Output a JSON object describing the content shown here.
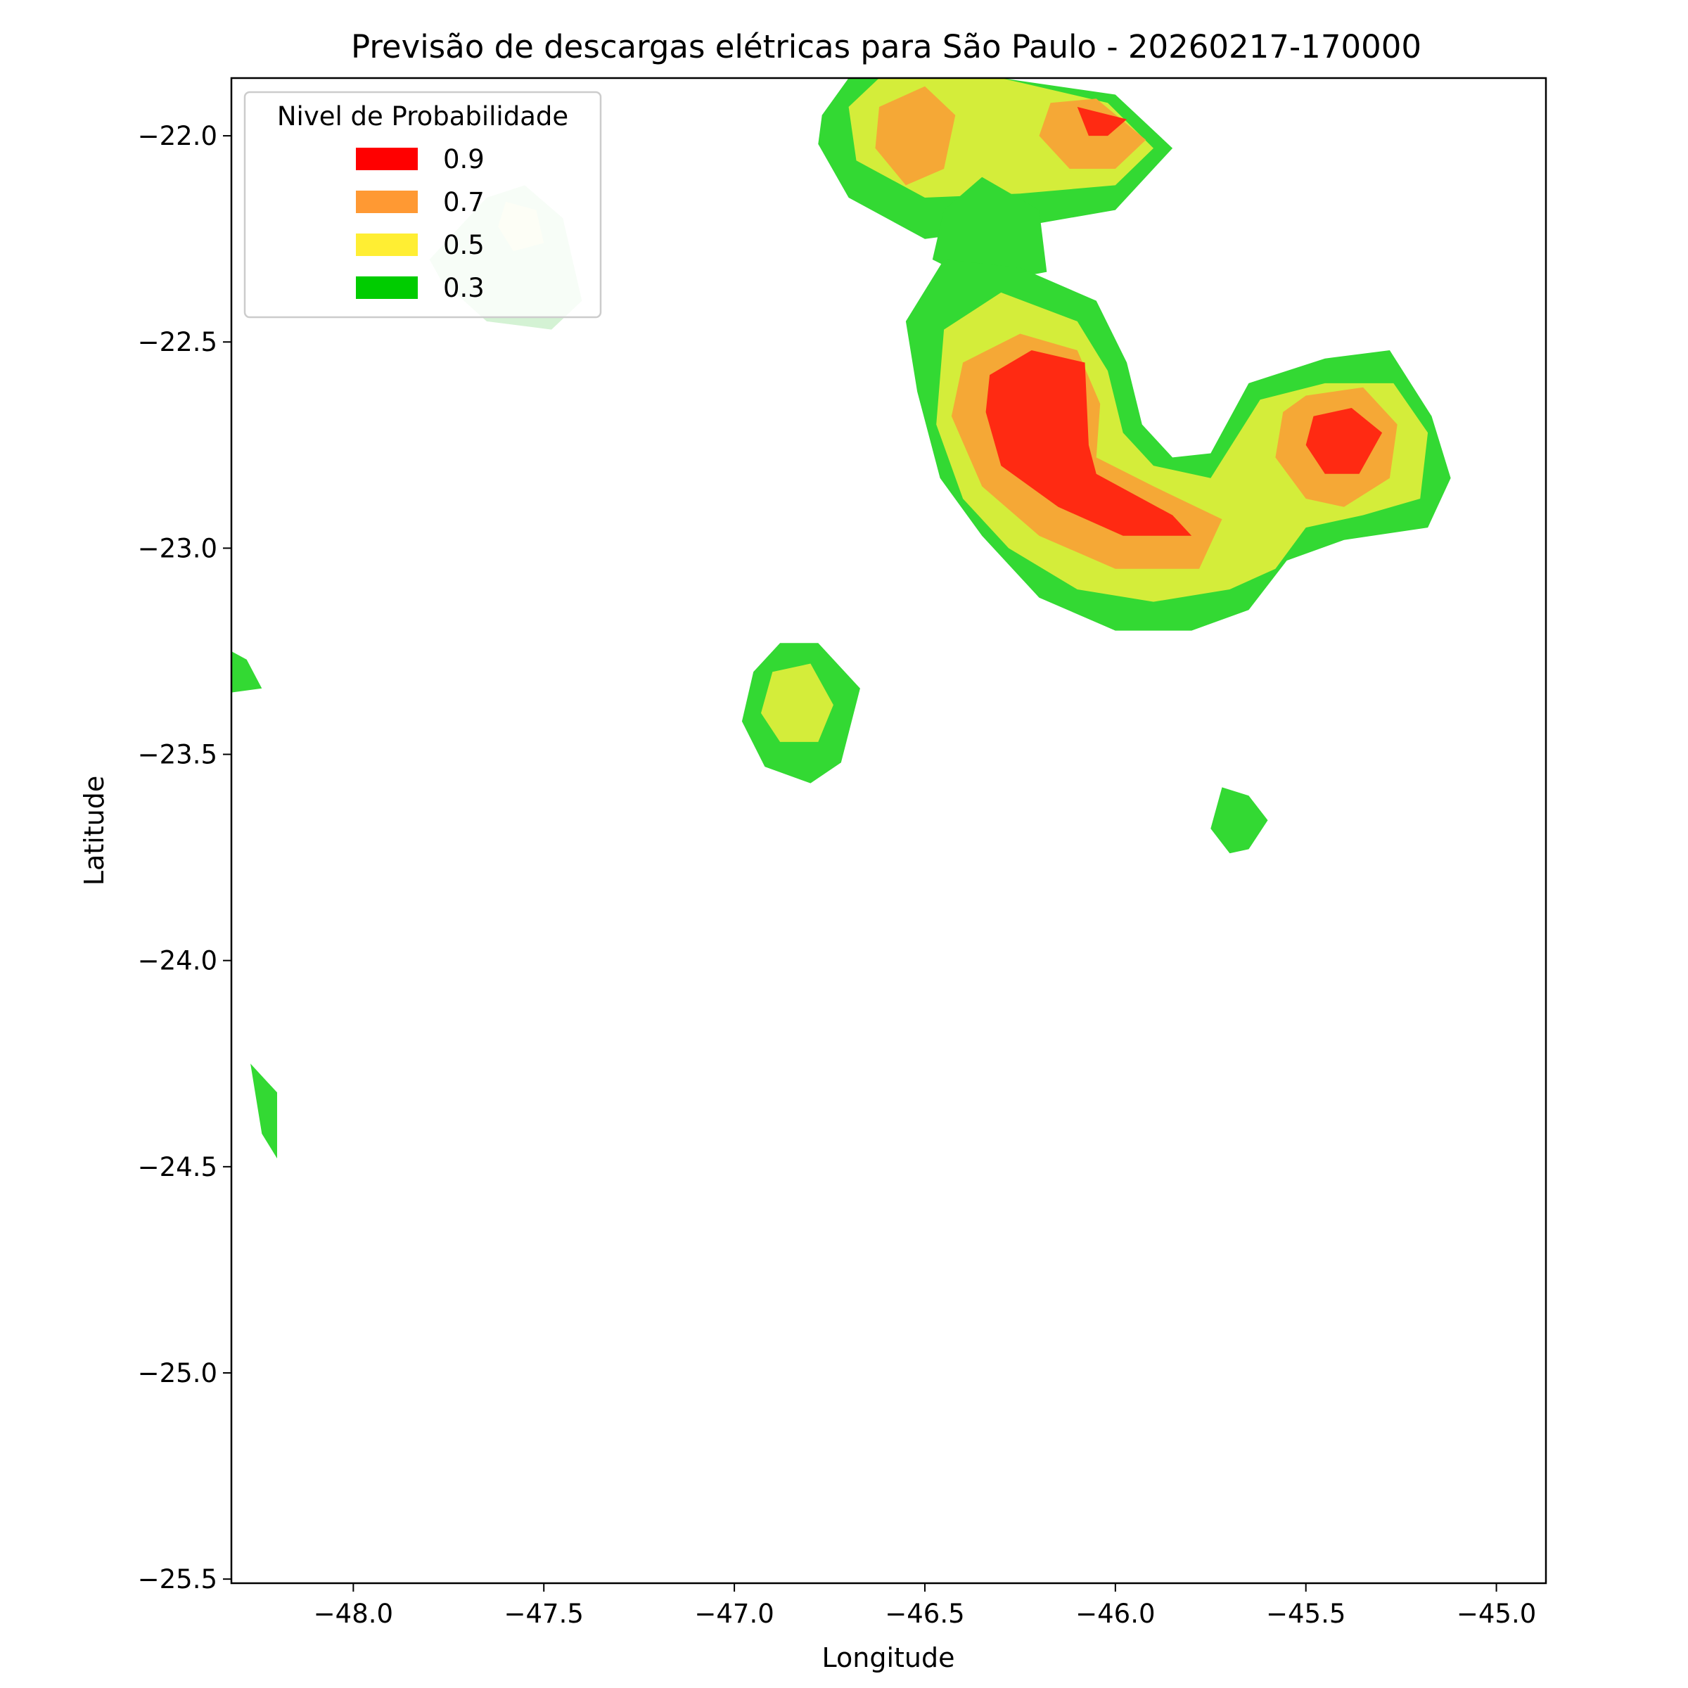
{
  "chart_data": {
    "type": "contour-map",
    "title": "Previsão de descargas elétricas para São Paulo - 20260217-170000",
    "xlabel": "Longitude",
    "ylabel": "Latitude",
    "xlim": [
      -48.32,
      -44.87
    ],
    "ylim": [
      -25.51,
      -21.86
    ],
    "xticks": [
      -48.0,
      -47.5,
      -47.0,
      -46.5,
      -46.0,
      -45.5,
      -45.0
    ],
    "xtick_labels": [
      "−48.0",
      "−47.5",
      "−47.0",
      "−46.5",
      "−46.0",
      "−45.5",
      "−45.0"
    ],
    "yticks": [
      -22.0,
      -22.5,
      -23.0,
      -23.5,
      -24.0,
      -24.5,
      -25.0,
      -25.5
    ],
    "ytick_labels": [
      "−22.0",
      "−22.5",
      "−23.0",
      "−23.5",
      "−24.0",
      "−24.5",
      "−25.0",
      "−25.5"
    ],
    "legend": {
      "title": "Nivel de Probabilidade",
      "position": "upper-left",
      "items": [
        {
          "label": "0.9",
          "color": "#ff0000"
        },
        {
          "label": "0.7",
          "color": "#ff9933"
        },
        {
          "label": "0.5",
          "color": "#ffee33"
        },
        {
          "label": "0.3",
          "color": "#00cc00"
        }
      ]
    },
    "fill_colors": {
      "level_0_3": "#33d933",
      "level_0_5": "#d4ed3a",
      "level_0_7": "#f5a836",
      "level_0_9": "#ff2a12",
      "faded_0_3": "#d4f2d4",
      "faded_0_5": "#f4f8d3"
    },
    "regions": [
      {
        "name": "north-cell-0.3",
        "level": 0.3,
        "points": [
          [
            -46.77,
            -21.95
          ],
          [
            -46.7,
            -21.86
          ],
          [
            -46.3,
            -21.86
          ],
          [
            -46.0,
            -21.9
          ],
          [
            -45.85,
            -22.03
          ],
          [
            -46.0,
            -22.18
          ],
          [
            -46.25,
            -22.22
          ],
          [
            -46.5,
            -22.25
          ],
          [
            -46.7,
            -22.15
          ],
          [
            -46.78,
            -22.02
          ]
        ]
      },
      {
        "name": "north-cell-0.5",
        "level": 0.5,
        "points": [
          [
            -46.7,
            -21.93
          ],
          [
            -46.62,
            -21.86
          ],
          [
            -46.3,
            -21.86
          ],
          [
            -46.02,
            -21.92
          ],
          [
            -45.9,
            -22.03
          ],
          [
            -46.0,
            -22.12
          ],
          [
            -46.25,
            -22.14
          ],
          [
            -46.5,
            -22.15
          ],
          [
            -46.68,
            -22.06
          ]
        ]
      },
      {
        "name": "north-cell-0.7-west",
        "level": 0.7,
        "points": [
          [
            -46.62,
            -21.93
          ],
          [
            -46.5,
            -21.88
          ],
          [
            -46.42,
            -21.95
          ],
          [
            -46.45,
            -22.08
          ],
          [
            -46.55,
            -22.12
          ],
          [
            -46.63,
            -22.03
          ]
        ]
      },
      {
        "name": "north-cell-0.7-east",
        "level": 0.7,
        "points": [
          [
            -46.17,
            -21.92
          ],
          [
            -46.05,
            -21.91
          ],
          [
            -45.92,
            -22.01
          ],
          [
            -46.0,
            -22.08
          ],
          [
            -46.12,
            -22.08
          ],
          [
            -46.2,
            -22.0
          ]
        ]
      },
      {
        "name": "north-cell-0.9",
        "level": 0.9,
        "points": [
          [
            -46.1,
            -21.93
          ],
          [
            -45.97,
            -21.96
          ],
          [
            -46.02,
            -22.0
          ],
          [
            -46.07,
            -22.0
          ]
        ]
      },
      {
        "name": "bridge-0.3",
        "level": 0.3,
        "points": [
          [
            -46.35,
            -22.1
          ],
          [
            -46.2,
            -22.18
          ],
          [
            -46.18,
            -22.33
          ],
          [
            -46.35,
            -22.36
          ],
          [
            -46.48,
            -22.3
          ],
          [
            -46.45,
            -22.18
          ]
        ]
      },
      {
        "name": "main-cell-0.3",
        "level": 0.3,
        "points": [
          [
            -46.45,
            -22.3
          ],
          [
            -46.25,
            -22.32
          ],
          [
            -46.05,
            -22.4
          ],
          [
            -45.97,
            -22.55
          ],
          [
            -45.93,
            -22.7
          ],
          [
            -45.85,
            -22.78
          ],
          [
            -45.75,
            -22.77
          ],
          [
            -45.65,
            -22.6
          ],
          [
            -45.45,
            -22.54
          ],
          [
            -45.28,
            -22.52
          ],
          [
            -45.17,
            -22.68
          ],
          [
            -45.12,
            -22.83
          ],
          [
            -45.18,
            -22.95
          ],
          [
            -45.4,
            -22.98
          ],
          [
            -45.55,
            -23.03
          ],
          [
            -45.65,
            -23.15
          ],
          [
            -45.8,
            -23.2
          ],
          [
            -46.0,
            -23.2
          ],
          [
            -46.2,
            -23.12
          ],
          [
            -46.35,
            -22.97
          ],
          [
            -46.46,
            -22.83
          ],
          [
            -46.52,
            -22.62
          ],
          [
            -46.55,
            -22.45
          ]
        ]
      },
      {
        "name": "main-cell-0.5",
        "level": 0.5,
        "points": [
          [
            -46.45,
            -22.47
          ],
          [
            -46.3,
            -22.38
          ],
          [
            -46.1,
            -22.45
          ],
          [
            -46.02,
            -22.57
          ],
          [
            -45.98,
            -22.72
          ],
          [
            -45.9,
            -22.8
          ],
          [
            -45.75,
            -22.83
          ],
          [
            -45.62,
            -22.64
          ],
          [
            -45.45,
            -22.6
          ],
          [
            -45.27,
            -22.6
          ],
          [
            -45.18,
            -22.72
          ],
          [
            -45.2,
            -22.88
          ],
          [
            -45.35,
            -22.92
          ],
          [
            -45.5,
            -22.95
          ],
          [
            -45.58,
            -23.05
          ],
          [
            -45.7,
            -23.1
          ],
          [
            -45.9,
            -23.13
          ],
          [
            -46.1,
            -23.1
          ],
          [
            -46.28,
            -23.0
          ],
          [
            -46.4,
            -22.88
          ],
          [
            -46.47,
            -22.7
          ]
        ]
      },
      {
        "name": "main-cell-0.7-west",
        "level": 0.7,
        "points": [
          [
            -46.4,
            -22.55
          ],
          [
            -46.25,
            -22.48
          ],
          [
            -46.1,
            -22.52
          ],
          [
            -46.04,
            -22.65
          ],
          [
            -46.05,
            -22.78
          ],
          [
            -45.9,
            -22.85
          ],
          [
            -45.72,
            -22.93
          ],
          [
            -45.78,
            -23.05
          ],
          [
            -46.0,
            -23.05
          ],
          [
            -46.2,
            -22.97
          ],
          [
            -46.35,
            -22.85
          ],
          [
            -46.43,
            -22.68
          ]
        ]
      },
      {
        "name": "main-cell-0.7-east",
        "level": 0.7,
        "points": [
          [
            -45.5,
            -22.63
          ],
          [
            -45.35,
            -22.61
          ],
          [
            -45.26,
            -22.7
          ],
          [
            -45.28,
            -22.83
          ],
          [
            -45.4,
            -22.9
          ],
          [
            -45.5,
            -22.88
          ],
          [
            -45.58,
            -22.78
          ],
          [
            -45.56,
            -22.67
          ]
        ]
      },
      {
        "name": "main-cell-0.9-west",
        "level": 0.9,
        "points": [
          [
            -46.33,
            -22.58
          ],
          [
            -46.22,
            -22.52
          ],
          [
            -46.08,
            -22.55
          ],
          [
            -46.07,
            -22.75
          ],
          [
            -46.05,
            -22.82
          ],
          [
            -45.85,
            -22.92
          ],
          [
            -45.8,
            -22.97
          ],
          [
            -45.98,
            -22.97
          ],
          [
            -46.15,
            -22.9
          ],
          [
            -46.3,
            -22.8
          ],
          [
            -46.34,
            -22.67
          ]
        ]
      },
      {
        "name": "main-cell-0.9-east",
        "level": 0.9,
        "points": [
          [
            -45.48,
            -22.68
          ],
          [
            -45.38,
            -22.66
          ],
          [
            -45.3,
            -22.72
          ],
          [
            -45.36,
            -22.82
          ],
          [
            -45.45,
            -22.82
          ],
          [
            -45.5,
            -22.75
          ]
        ]
      },
      {
        "name": "central-cell-0.3",
        "level": 0.3,
        "points": [
          [
            -46.95,
            -23.3
          ],
          [
            -46.88,
            -23.23
          ],
          [
            -46.78,
            -23.23
          ],
          [
            -46.67,
            -23.34
          ],
          [
            -46.72,
            -23.52
          ],
          [
            -46.8,
            -23.57
          ],
          [
            -46.92,
            -23.53
          ],
          [
            -46.98,
            -23.42
          ]
        ]
      },
      {
        "name": "central-cell-0.5",
        "level": 0.5,
        "points": [
          [
            -46.9,
            -23.3
          ],
          [
            -46.8,
            -23.28
          ],
          [
            -46.74,
            -23.38
          ],
          [
            -46.78,
            -23.47
          ],
          [
            -46.88,
            -23.47
          ],
          [
            -46.93,
            -23.4
          ]
        ]
      },
      {
        "name": "south-east-cell-0.3",
        "level": 0.3,
        "points": [
          [
            -45.72,
            -23.58
          ],
          [
            -45.65,
            -23.6
          ],
          [
            -45.6,
            -23.66
          ],
          [
            -45.65,
            -23.73
          ],
          [
            -45.7,
            -23.74
          ],
          [
            -45.75,
            -23.68
          ]
        ]
      },
      {
        "name": "west-edge-cell-0.3",
        "level": 0.3,
        "points": [
          [
            -48.32,
            -23.25
          ],
          [
            -48.28,
            -23.27
          ],
          [
            -48.24,
            -23.34
          ],
          [
            -48.32,
            -23.35
          ]
        ]
      },
      {
        "name": "south-west-cell-0.3",
        "level": 0.3,
        "points": [
          [
            -48.27,
            -24.25
          ],
          [
            -48.2,
            -24.32
          ],
          [
            -48.2,
            -24.48
          ],
          [
            -48.24,
            -24.42
          ]
        ]
      },
      {
        "name": "faded-cell-0.3",
        "level": 0.3,
        "faded": true,
        "points": [
          [
            -47.65,
            -22.15
          ],
          [
            -47.55,
            -22.12
          ],
          [
            -47.45,
            -22.2
          ],
          [
            -47.4,
            -22.4
          ],
          [
            -47.48,
            -22.47
          ],
          [
            -47.65,
            -22.45
          ],
          [
            -47.77,
            -22.35
          ],
          [
            -47.8,
            -22.3
          ]
        ]
      },
      {
        "name": "faded-cell-0.5",
        "level": 0.5,
        "faded": true,
        "points": [
          [
            -47.6,
            -22.16
          ],
          [
            -47.52,
            -22.18
          ],
          [
            -47.5,
            -22.26
          ],
          [
            -47.58,
            -22.28
          ],
          [
            -47.62,
            -22.22
          ]
        ]
      }
    ]
  }
}
